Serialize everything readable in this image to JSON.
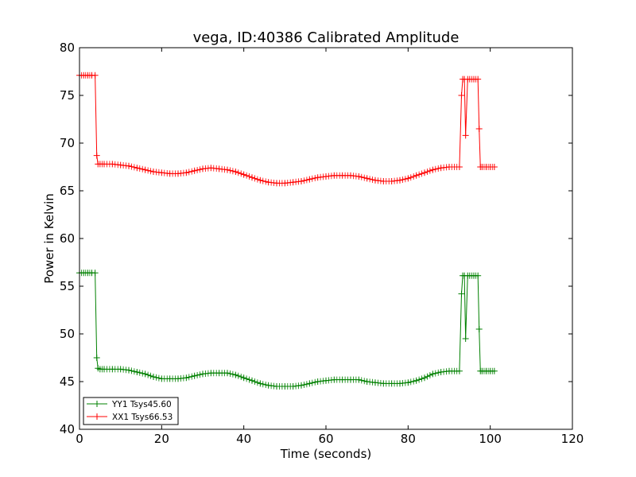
{
  "chart_data": {
    "type": "line",
    "title": "vega, ID:40386 Calibrated Amplitude",
    "xlabel": "Time (seconds)",
    "ylabel": "Power in Kelvin",
    "xlim": [
      0,
      120
    ],
    "ylim": [
      40,
      80
    ],
    "xticks": [
      "0",
      "20",
      "40",
      "60",
      "80",
      "100",
      "120"
    ],
    "yticks": [
      "40",
      "45",
      "50",
      "55",
      "60",
      "65",
      "70",
      "75",
      "80"
    ],
    "grid": false,
    "legend_position": "lower-left",
    "marker": "+",
    "series": [
      {
        "name": "YY1 Tsys45.60",
        "color": "#008000",
        "x": [
          0,
          1,
          2,
          3,
          3.8,
          4.2,
          4.5,
          5,
          6,
          8,
          10,
          12,
          14,
          16,
          18,
          20,
          22,
          24,
          26,
          28,
          30,
          32,
          34,
          36,
          38,
          40,
          42,
          44,
          46,
          48,
          50,
          52,
          54,
          56,
          58,
          60,
          62,
          64,
          66,
          68,
          70,
          72,
          74,
          76,
          78,
          80,
          82,
          84,
          86,
          88,
          90,
          92.5,
          93,
          93.3,
          93.7,
          94,
          94.5,
          95,
          96,
          97,
          97.3,
          97.6,
          98,
          99,
          100,
          101
        ],
        "values": [
          56.4,
          56.4,
          56.4,
          56.4,
          56.4,
          47.5,
          46.4,
          46.3,
          46.3,
          46.3,
          46.3,
          46.2,
          46.0,
          45.8,
          45.5,
          45.3,
          45.3,
          45.3,
          45.4,
          45.6,
          45.8,
          45.9,
          45.9,
          45.9,
          45.7,
          45.4,
          45.1,
          44.8,
          44.6,
          44.5,
          44.5,
          44.5,
          44.6,
          44.8,
          45.0,
          45.1,
          45.2,
          45.2,
          45.2,
          45.2,
          45.0,
          44.9,
          44.8,
          44.8,
          44.8,
          44.9,
          45.1,
          45.4,
          45.8,
          46.0,
          46.1,
          46.1,
          54.2,
          56.1,
          56.1,
          49.5,
          56.1,
          56.1,
          56.1,
          56.1,
          50.5,
          46.1,
          46.1,
          46.1,
          46.1,
          46.1
        ]
      },
      {
        "name": "XX1 Tsys66.53",
        "color": "#ff0000",
        "x": [
          0,
          1,
          2,
          3,
          3.8,
          4.2,
          4.5,
          5,
          6,
          8,
          10,
          12,
          14,
          16,
          18,
          20,
          22,
          24,
          26,
          28,
          30,
          32,
          34,
          36,
          38,
          40,
          42,
          44,
          46,
          48,
          50,
          52,
          54,
          56,
          58,
          60,
          62,
          64,
          66,
          68,
          70,
          72,
          74,
          76,
          78,
          80,
          82,
          84,
          86,
          88,
          90,
          92.5,
          93,
          93.3,
          93.7,
          94,
          94.5,
          95,
          96,
          97,
          97.3,
          97.6,
          98,
          99,
          100,
          101
        ],
        "values": [
          77.1,
          77.1,
          77.1,
          77.1,
          77.1,
          68.7,
          67.8,
          67.8,
          67.8,
          67.8,
          67.7,
          67.6,
          67.4,
          67.2,
          67.0,
          66.9,
          66.8,
          66.8,
          66.9,
          67.1,
          67.3,
          67.4,
          67.3,
          67.2,
          67.0,
          66.7,
          66.4,
          66.1,
          65.9,
          65.8,
          65.8,
          65.9,
          66.0,
          66.2,
          66.4,
          66.5,
          66.6,
          66.6,
          66.6,
          66.5,
          66.3,
          66.1,
          66.0,
          66.0,
          66.1,
          66.3,
          66.6,
          66.9,
          67.2,
          67.4,
          67.5,
          67.5,
          75.0,
          76.7,
          76.7,
          70.8,
          76.7,
          76.7,
          76.7,
          76.7,
          71.5,
          67.5,
          67.5,
          67.5,
          67.5,
          67.5
        ]
      }
    ]
  }
}
